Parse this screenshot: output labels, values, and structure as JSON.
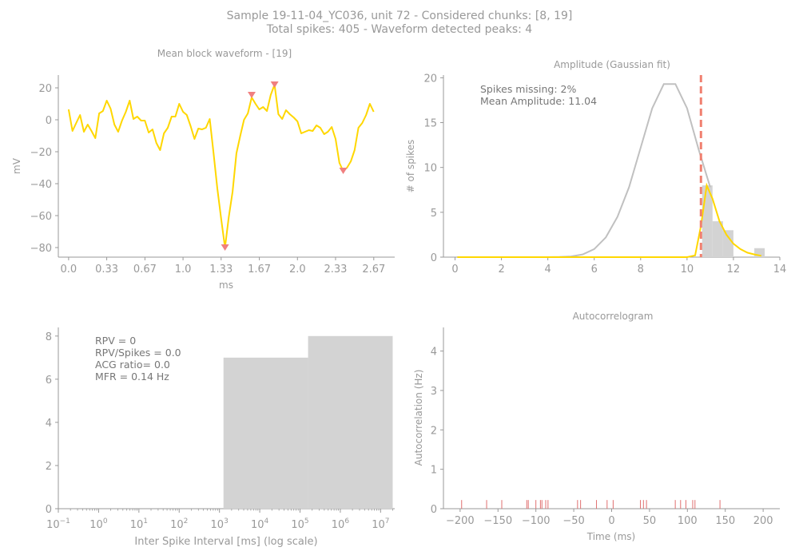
{
  "figure": {
    "title_line1": "Sample 19-11-04_YC036, unit 72 - Considered chunks: [8, 19]",
    "title_line2": "Total spikes: 405 - Waveform detected peaks: 4"
  },
  "colors": {
    "waveform": "#FFD700",
    "peak_marker": "#F08080",
    "gauss_curve": "#C0C0C0",
    "bars": "#D3D3D3",
    "cutoff_line": "#F08070",
    "axis": "#999999",
    "acg_ticks": "#E07070",
    "annotation_text": "#777777"
  },
  "chart_data": [
    {
      "id": "waveform",
      "type": "line",
      "title": "Mean block waveform - [19]",
      "xlabel": "ms",
      "ylabel": "mV",
      "xlim": [
        -0.09,
        2.85
      ],
      "ylim": [
        -86,
        28
      ],
      "xticks": [
        0.0,
        0.333,
        0.667,
        1.0,
        1.333,
        1.667,
        2.0,
        2.333,
        2.667
      ],
      "xtick_labels": [
        "0.0",
        "0.33",
        "0.67",
        "1.0",
        "1.33",
        "1.67",
        "2.0",
        "2.33",
        "2.67"
      ],
      "yticks": [
        20,
        0,
        -20,
        -40,
        -60,
        -80
      ],
      "ytick_labels": [
        "20",
        "0",
        "−20",
        "−40",
        "−60",
        "−80"
      ],
      "series": [
        {
          "values": [
            6.5,
            -7,
            -2,
            3,
            -7.5,
            -3,
            -7,
            -11.5,
            4,
            5.5,
            12,
            7,
            -3,
            -7.5,
            -0.5,
            5,
            12,
            0.5,
            2,
            -0.5,
            -0.5,
            -8,
            -6,
            -14.5,
            -19,
            -8.5,
            -5,
            2,
            2,
            10,
            5,
            3,
            -4,
            -12,
            -5.5,
            -6,
            -5,
            0.5,
            -21,
            -43,
            -62,
            -80,
            -61,
            -45,
            -21,
            -10,
            0,
            4,
            14,
            10,
            6.5,
            8,
            5.5,
            15.5,
            22,
            3.5,
            0.5,
            6,
            3.5,
            1.5,
            -1,
            -8.5,
            -7.5,
            -6.5,
            -7,
            -3.5,
            -5,
            -9,
            -7.5,
            -4.5,
            -12,
            -27,
            -32,
            -30,
            -26,
            -19,
            -5,
            -2,
            3,
            10,
            5
          ]
        }
      ],
      "x_step": 0.03333,
      "peaks": [
        {
          "x": 1.3667,
          "y": -80
        },
        {
          "x": 1.6,
          "y": 15.5
        },
        {
          "x": 1.8,
          "y": 22
        },
        {
          "x": 2.4,
          "y": -32
        }
      ]
    },
    {
      "id": "amplitude",
      "type": "bar+line",
      "title": "Amplitude (Gaussian fit)",
      "xlabel": "",
      "ylabel": "# of spikes",
      "xlim": [
        -0.5,
        14
      ],
      "ylim": [
        0,
        20.3
      ],
      "xticks": [
        0,
        2,
        4,
        6,
        8,
        10,
        12,
        14
      ],
      "yticks": [
        0,
        5,
        10,
        15,
        20
      ],
      "annotation": "Spikes missing: 2%\nMean Amplitude: 11.04",
      "bars": [
        {
          "x0": 10.65,
          "x1": 11.1,
          "value": 8
        },
        {
          "x0": 11.1,
          "x1": 11.55,
          "value": 4
        },
        {
          "x0": 11.55,
          "x1": 12.0,
          "value": 3
        },
        {
          "x0": 12.9,
          "x1": 13.35,
          "value": 1
        }
      ],
      "gaussian_curve": {
        "x": [
          0.1,
          1,
          2,
          3,
          4,
          4.5,
          5,
          5.5,
          6,
          6.5,
          7,
          7.5,
          8,
          8.5,
          9,
          9.5,
          10,
          10.5,
          11
        ],
        "y": [
          0,
          0,
          0,
          0,
          0,
          0.02,
          0.08,
          0.3,
          0.9,
          2.2,
          4.5,
          7.8,
          12.2,
          16.6,
          19.3,
          19.3,
          16.6,
          12,
          7.8
        ]
      },
      "fit_curve": {
        "x": [
          0.1,
          2,
          4,
          6,
          8,
          10,
          10.35,
          10.6,
          10.85,
          11.1,
          11.4,
          11.7,
          12,
          12.3,
          12.6,
          12.9,
          13.2
        ],
        "y": [
          0,
          0,
          0,
          0,
          0,
          0,
          0.2,
          3.5,
          8,
          6.5,
          4,
          2.5,
          1.5,
          0.9,
          0.5,
          0.3,
          0.15
        ]
      },
      "cutoff_x": 10.6
    },
    {
      "id": "isi",
      "type": "bar",
      "title": "",
      "xlabel": "Inter Spike Interval [ms] (log scale)",
      "ylabel": "",
      "xscale": "log",
      "xlim_exp": [
        -1,
        7.35
      ],
      "ylim": [
        0,
        8.4
      ],
      "xtick_exps": [
        -1,
        0,
        1,
        2,
        3,
        4,
        5,
        6,
        7
      ],
      "yticks": [
        0,
        2,
        4,
        6,
        8
      ],
      "annotation": "RPV = 0\nRPV/Spikes = 0.0\nACG ratio= 0.0\nMFR = 0.14 Hz",
      "bars": [
        {
          "x0_exp": 3.1,
          "x1_exp": 5.2,
          "value": 7
        },
        {
          "x0_exp": 5.2,
          "x1_exp": 7.3,
          "value": 8
        }
      ]
    },
    {
      "id": "acg",
      "type": "ticks",
      "title": "Autocorrelogram",
      "xlabel": "Time (ms)",
      "ylabel": "Autocorrelation (Hz)",
      "xlim": [
        -222,
        222
      ],
      "ylim": [
        0,
        4.6
      ],
      "xticks": [
        -200,
        -150,
        -100,
        -50,
        0,
        50,
        100,
        150,
        200
      ],
      "xtick_labels": [
        "−200",
        "−150",
        "−100",
        "−50",
        "0",
        "50",
        "100",
        "150",
        "200"
      ],
      "yticks": [
        0,
        1,
        2,
        3,
        4
      ],
      "tick_height": 0.22,
      "events": [
        -198,
        -165,
        -145,
        -112,
        -110,
        -100,
        -94,
        -92,
        -87,
        -84,
        -45,
        -41,
        -20,
        -6,
        2,
        38,
        42,
        46,
        84,
        91,
        98,
        107,
        110,
        143
      ]
    }
  ]
}
